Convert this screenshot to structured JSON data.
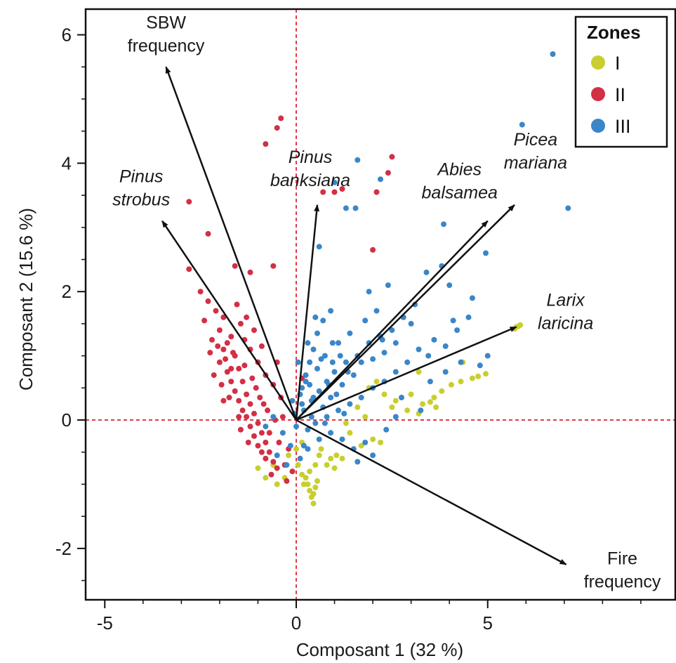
{
  "chart_data": {
    "type": "scatter",
    "xlabel": "Composant 1  (32 %)",
    "ylabel": "Composant 2  (15.6 %)",
    "xlim": [
      -5.5,
      9.9
    ],
    "ylim": [
      -2.8,
      6.4
    ],
    "x_ticks": [
      -5,
      0,
      5
    ],
    "y_ticks": [
      -2,
      0,
      2,
      4,
      6
    ],
    "grid": false,
    "reference_lines": {
      "x": 0,
      "y": 0,
      "color": "#e03c4a",
      "style": "dashed"
    },
    "legend": {
      "title": "Zones",
      "position": "top-right",
      "entries": [
        {
          "label": "I",
          "color": "#c8cf2e"
        },
        {
          "label": "II",
          "color": "#d32f45"
        },
        {
          "label": "III",
          "color": "#3a86c8"
        }
      ]
    },
    "vectors": [
      {
        "label_lines": [
          "SBW",
          "frequency"
        ],
        "italic": false,
        "x": -3.4,
        "y": 5.5
      },
      {
        "label_lines": [
          "Pinus",
          "strobus"
        ],
        "italic": true,
        "x": -3.5,
        "y": 3.1
      },
      {
        "label_lines": [
          "Pinus",
          "banksiana"
        ],
        "italic": true,
        "x": 0.55,
        "y": 3.35
      },
      {
        "label_lines": [
          "Abies",
          "balsamea"
        ],
        "italic": true,
        "x": 5.0,
        "y": 3.1
      },
      {
        "label_lines": [
          "Picea",
          "mariana"
        ],
        "italic": true,
        "x": 5.7,
        "y": 3.35
      },
      {
        "label_lines": [
          "Larix",
          "laricina"
        ],
        "italic": true,
        "x": 5.75,
        "y": 1.45
      },
      {
        "label_lines": [
          "Fire",
          "frequency"
        ],
        "italic": false,
        "x": 7.05,
        "y": -2.25
      }
    ],
    "series": [
      {
        "name": "I",
        "color": "#c8cf2e",
        "points": [
          [
            5.75,
            1.45
          ],
          [
            5.7,
            1.42
          ],
          [
            5.8,
            1.46
          ],
          [
            4.6,
            0.65
          ],
          [
            4.3,
            0.6
          ],
          [
            4.05,
            0.55
          ],
          [
            3.8,
            0.45
          ],
          [
            3.6,
            0.35
          ],
          [
            3.5,
            0.28
          ],
          [
            3.3,
            0.25
          ],
          [
            3.2,
            0.1
          ],
          [
            2.9,
            0.15
          ],
          [
            2.5,
            0.2
          ],
          [
            2.3,
            0.4
          ],
          [
            2.1,
            0.6
          ],
          [
            1.9,
            0.5
          ],
          [
            1.6,
            0.2
          ],
          [
            1.3,
            -0.05
          ],
          [
            1.4,
            -0.2
          ],
          [
            1.7,
            -0.4
          ],
          [
            2.0,
            -0.3
          ],
          [
            2.2,
            -0.35
          ],
          [
            1.2,
            -0.6
          ],
          [
            1.0,
            -0.75
          ],
          [
            0.8,
            -0.7
          ],
          [
            0.6,
            -0.55
          ],
          [
            0.5,
            -0.7
          ],
          [
            0.35,
            -0.8
          ],
          [
            0.25,
            -0.9
          ],
          [
            0.3,
            -1.0
          ],
          [
            0.35,
            -1.1
          ],
          [
            0.4,
            -1.2
          ],
          [
            0.45,
            -1.15
          ],
          [
            0.5,
            -1.05
          ],
          [
            0.55,
            -0.95
          ],
          [
            0.2,
            -1.0
          ],
          [
            0.15,
            -0.85
          ],
          [
            0.05,
            -0.7
          ],
          [
            -0.1,
            -0.8
          ],
          [
            -0.3,
            -0.9
          ],
          [
            -0.5,
            -1.0
          ],
          [
            -0.8,
            -0.9
          ],
          [
            -1.0,
            -0.75
          ],
          [
            -0.6,
            -0.7
          ],
          [
            -0.2,
            -0.55
          ],
          [
            0.0,
            -0.45
          ],
          [
            0.65,
            -0.45
          ],
          [
            0.15,
            -0.35
          ],
          [
            1.05,
            -0.55
          ],
          [
            0.9,
            -0.6
          ],
          [
            4.95,
            0.72
          ],
          [
            4.75,
            0.68
          ],
          [
            3.0,
            0.4
          ],
          [
            2.6,
            0.3
          ],
          [
            5.85,
            1.48
          ],
          [
            4.35,
            0.9
          ],
          [
            3.2,
            0.75
          ],
          [
            1.8,
            0.05
          ],
          [
            3.65,
            0.2
          ],
          [
            0.45,
            -1.3
          ]
        ]
      },
      {
        "name": "II",
        "color": "#d32f45",
        "points": [
          [
            -0.4,
            4.7
          ],
          [
            -0.5,
            4.55
          ],
          [
            -0.8,
            4.3
          ],
          [
            -2.8,
            3.4
          ],
          [
            -2.3,
            2.9
          ],
          [
            -2.8,
            2.35
          ],
          [
            -1.6,
            2.4
          ],
          [
            -1.2,
            2.3
          ],
          [
            -0.6,
            2.4
          ],
          [
            -2.5,
            2.0
          ],
          [
            -2.3,
            1.85
          ],
          [
            -2.1,
            1.7
          ],
          [
            -2.4,
            1.55
          ],
          [
            -2.0,
            1.4
          ],
          [
            -2.2,
            1.25
          ],
          [
            -1.9,
            1.1
          ],
          [
            -2.0,
            0.9
          ],
          [
            -1.8,
            0.75
          ],
          [
            -1.7,
            0.6
          ],
          [
            -1.6,
            0.45
          ],
          [
            -1.5,
            0.3
          ],
          [
            -1.4,
            0.15
          ],
          [
            -1.3,
            0.05
          ],
          [
            -1.2,
            -0.1
          ],
          [
            -1.1,
            -0.25
          ],
          [
            -1.0,
            -0.4
          ],
          [
            -0.9,
            -0.5
          ],
          [
            -0.8,
            -0.6
          ],
          [
            -1.9,
            1.6
          ],
          [
            -1.7,
            1.3
          ],
          [
            -1.6,
            1.0
          ],
          [
            -1.5,
            0.8
          ],
          [
            -1.4,
            0.6
          ],
          [
            -1.3,
            0.4
          ],
          [
            -1.2,
            0.25
          ],
          [
            -1.1,
            0.1
          ],
          [
            -1.0,
            -0.05
          ],
          [
            -0.9,
            -0.2
          ],
          [
            -0.8,
            -0.35
          ],
          [
            -0.7,
            -0.5
          ],
          [
            -0.6,
            -0.65
          ],
          [
            -1.8,
            1.2
          ],
          [
            -1.45,
            1.5
          ],
          [
            -1.2,
            1.1
          ],
          [
            -1.0,
            0.9
          ],
          [
            -0.8,
            0.7
          ],
          [
            -0.6,
            0.55
          ],
          [
            -0.4,
            0.35
          ],
          [
            -1.55,
            1.8
          ],
          [
            -1.3,
            1.6
          ],
          [
            -2.25,
            1.05
          ],
          [
            -1.95,
            0.55
          ],
          [
            -1.75,
            0.35
          ],
          [
            -0.5,
            0.9
          ],
          [
            -0.3,
            -0.7
          ],
          [
            -0.5,
            -0.75
          ],
          [
            -0.1,
            -0.8
          ],
          [
            -0.2,
            -0.45
          ],
          [
            -0.7,
            -0.2
          ],
          [
            -0.35,
            0.05
          ],
          [
            -1.05,
            0.5
          ],
          [
            -1.35,
            0.85
          ],
          [
            -1.65,
            1.05
          ],
          [
            -1.85,
            0.95
          ],
          [
            -2.05,
            1.15
          ],
          [
            -1.15,
            0.65
          ],
          [
            -0.95,
            0.35
          ],
          [
            -0.75,
            0.15
          ],
          [
            -0.55,
            0.0
          ],
          [
            -1.25,
            -0.35
          ],
          [
            0.7,
            3.55
          ],
          [
            1.0,
            3.55
          ],
          [
            1.2,
            3.6
          ],
          [
            2.1,
            3.55
          ],
          [
            2.4,
            3.85
          ],
          [
            2.5,
            4.1
          ],
          [
            2.0,
            2.65
          ],
          [
            0.15,
            0.65
          ],
          [
            -0.45,
            -0.35
          ],
          [
            -0.25,
            -0.95
          ],
          [
            -0.65,
            -0.85
          ],
          [
            -1.45,
            -0.15
          ],
          [
            -1.5,
            0.05
          ],
          [
            -0.85,
            0.25
          ],
          [
            -1.7,
            0.8
          ],
          [
            -2.15,
            0.7
          ],
          [
            -1.9,
            0.3
          ],
          [
            -1.35,
            1.25
          ],
          [
            -1.1,
            1.4
          ],
          [
            -0.9,
            1.15
          ]
        ]
      },
      {
        "name": "III",
        "color": "#3a86c8",
        "points": [
          [
            6.7,
            5.7
          ],
          [
            5.9,
            4.6
          ],
          [
            7.1,
            3.3
          ],
          [
            4.95,
            2.6
          ],
          [
            3.85,
            3.05
          ],
          [
            1.6,
            4.05
          ],
          [
            2.2,
            3.75
          ],
          [
            1.0,
            3.7
          ],
          [
            1.3,
            3.3
          ],
          [
            0.6,
            2.7
          ],
          [
            2.4,
            2.1
          ],
          [
            3.8,
            2.4
          ],
          [
            3.4,
            2.3
          ],
          [
            4.0,
            2.1
          ],
          [
            3.1,
            1.8
          ],
          [
            2.8,
            1.6
          ],
          [
            2.5,
            1.4
          ],
          [
            2.2,
            1.3
          ],
          [
            1.9,
            1.2
          ],
          [
            1.6,
            1.0
          ],
          [
            1.3,
            0.9
          ],
          [
            1.0,
            0.75
          ],
          [
            0.8,
            0.6
          ],
          [
            0.6,
            0.45
          ],
          [
            0.4,
            0.3
          ],
          [
            0.2,
            0.15
          ],
          [
            3.6,
            1.25
          ],
          [
            3.2,
            1.1
          ],
          [
            2.9,
            0.9
          ],
          [
            2.6,
            0.75
          ],
          [
            2.3,
            0.6
          ],
          [
            2.0,
            0.5
          ],
          [
            1.7,
            0.35
          ],
          [
            1.4,
            0.25
          ],
          [
            1.1,
            0.15
          ],
          [
            0.8,
            0.05
          ],
          [
            0.5,
            -0.05
          ],
          [
            0.3,
            -0.15
          ],
          [
            4.5,
            1.6
          ],
          [
            4.2,
            1.4
          ],
          [
            3.9,
            1.15
          ],
          [
            4.6,
            1.9
          ],
          [
            4.3,
            0.9
          ],
          [
            3.9,
            0.75
          ],
          [
            3.5,
            0.6
          ],
          [
            0.9,
            1.7
          ],
          [
            0.7,
            1.55
          ],
          [
            0.55,
            1.35
          ],
          [
            0.45,
            1.1
          ],
          [
            0.35,
            0.9
          ],
          [
            0.25,
            0.7
          ],
          [
            0.15,
            0.5
          ],
          [
            1.8,
            -0.35
          ],
          [
            1.5,
            -0.45
          ],
          [
            1.2,
            -0.3
          ],
          [
            0.9,
            -0.2
          ],
          [
            0.6,
            -0.3
          ],
          [
            0.3,
            -0.45
          ],
          [
            0.1,
            -0.6
          ],
          [
            -0.15,
            -0.4
          ],
          [
            -0.35,
            -0.2
          ],
          [
            -0.6,
            0.05
          ],
          [
            -0.8,
            -0.1
          ],
          [
            -0.5,
            -0.55
          ],
          [
            -0.25,
            -0.7
          ],
          [
            0.2,
            -0.4
          ],
          [
            1.1,
            1.2
          ],
          [
            1.4,
            1.35
          ],
          [
            1.8,
            1.55
          ],
          [
            2.1,
            1.7
          ],
          [
            1.5,
            0.7
          ],
          [
            1.2,
            0.55
          ],
          [
            0.9,
            0.35
          ],
          [
            0.7,
            0.2
          ],
          [
            0.4,
            0.05
          ],
          [
            2.6,
            1.2
          ],
          [
            2.3,
            1.05
          ],
          [
            3.0,
            1.5
          ],
          [
            5.0,
            1.0
          ],
          [
            4.8,
            0.85
          ],
          [
            0.05,
            0.9
          ],
          [
            -0.1,
            0.3
          ],
          [
            0.0,
            -0.1
          ],
          [
            0.15,
            0.25
          ],
          [
            0.35,
            0.55
          ],
          [
            0.55,
            0.8
          ],
          [
            0.75,
            1.0
          ],
          [
            0.95,
            1.2
          ],
          [
            1.15,
            1.0
          ],
          [
            1.35,
            0.75
          ],
          [
            2.75,
            0.35
          ],
          [
            3.25,
            0.15
          ],
          [
            2.0,
            -0.55
          ],
          [
            1.6,
            -0.65
          ],
          [
            2.35,
            -0.15
          ],
          [
            2.6,
            0.05
          ],
          [
            0.5,
            1.6
          ],
          [
            0.65,
            0.95
          ],
          [
            0.85,
            0.55
          ],
          [
            1.05,
            0.4
          ],
          [
            1.25,
            0.1
          ],
          [
            0.75,
            -0.05
          ],
          [
            0.45,
            0.35
          ],
          [
            0.25,
            0.6
          ],
          [
            0.1,
            0.4
          ],
          [
            -0.05,
            0.1
          ],
          [
            1.7,
            0.9
          ],
          [
            2.0,
            0.95
          ],
          [
            3.45,
            1.0
          ],
          [
            4.1,
            1.55
          ],
          [
            1.55,
            3.3
          ],
          [
            0.3,
            1.2
          ],
          [
            1.9,
            2.0
          ],
          [
            2.25,
            1.25
          ],
          [
            0.95,
            0.9
          ]
        ]
      }
    ]
  }
}
